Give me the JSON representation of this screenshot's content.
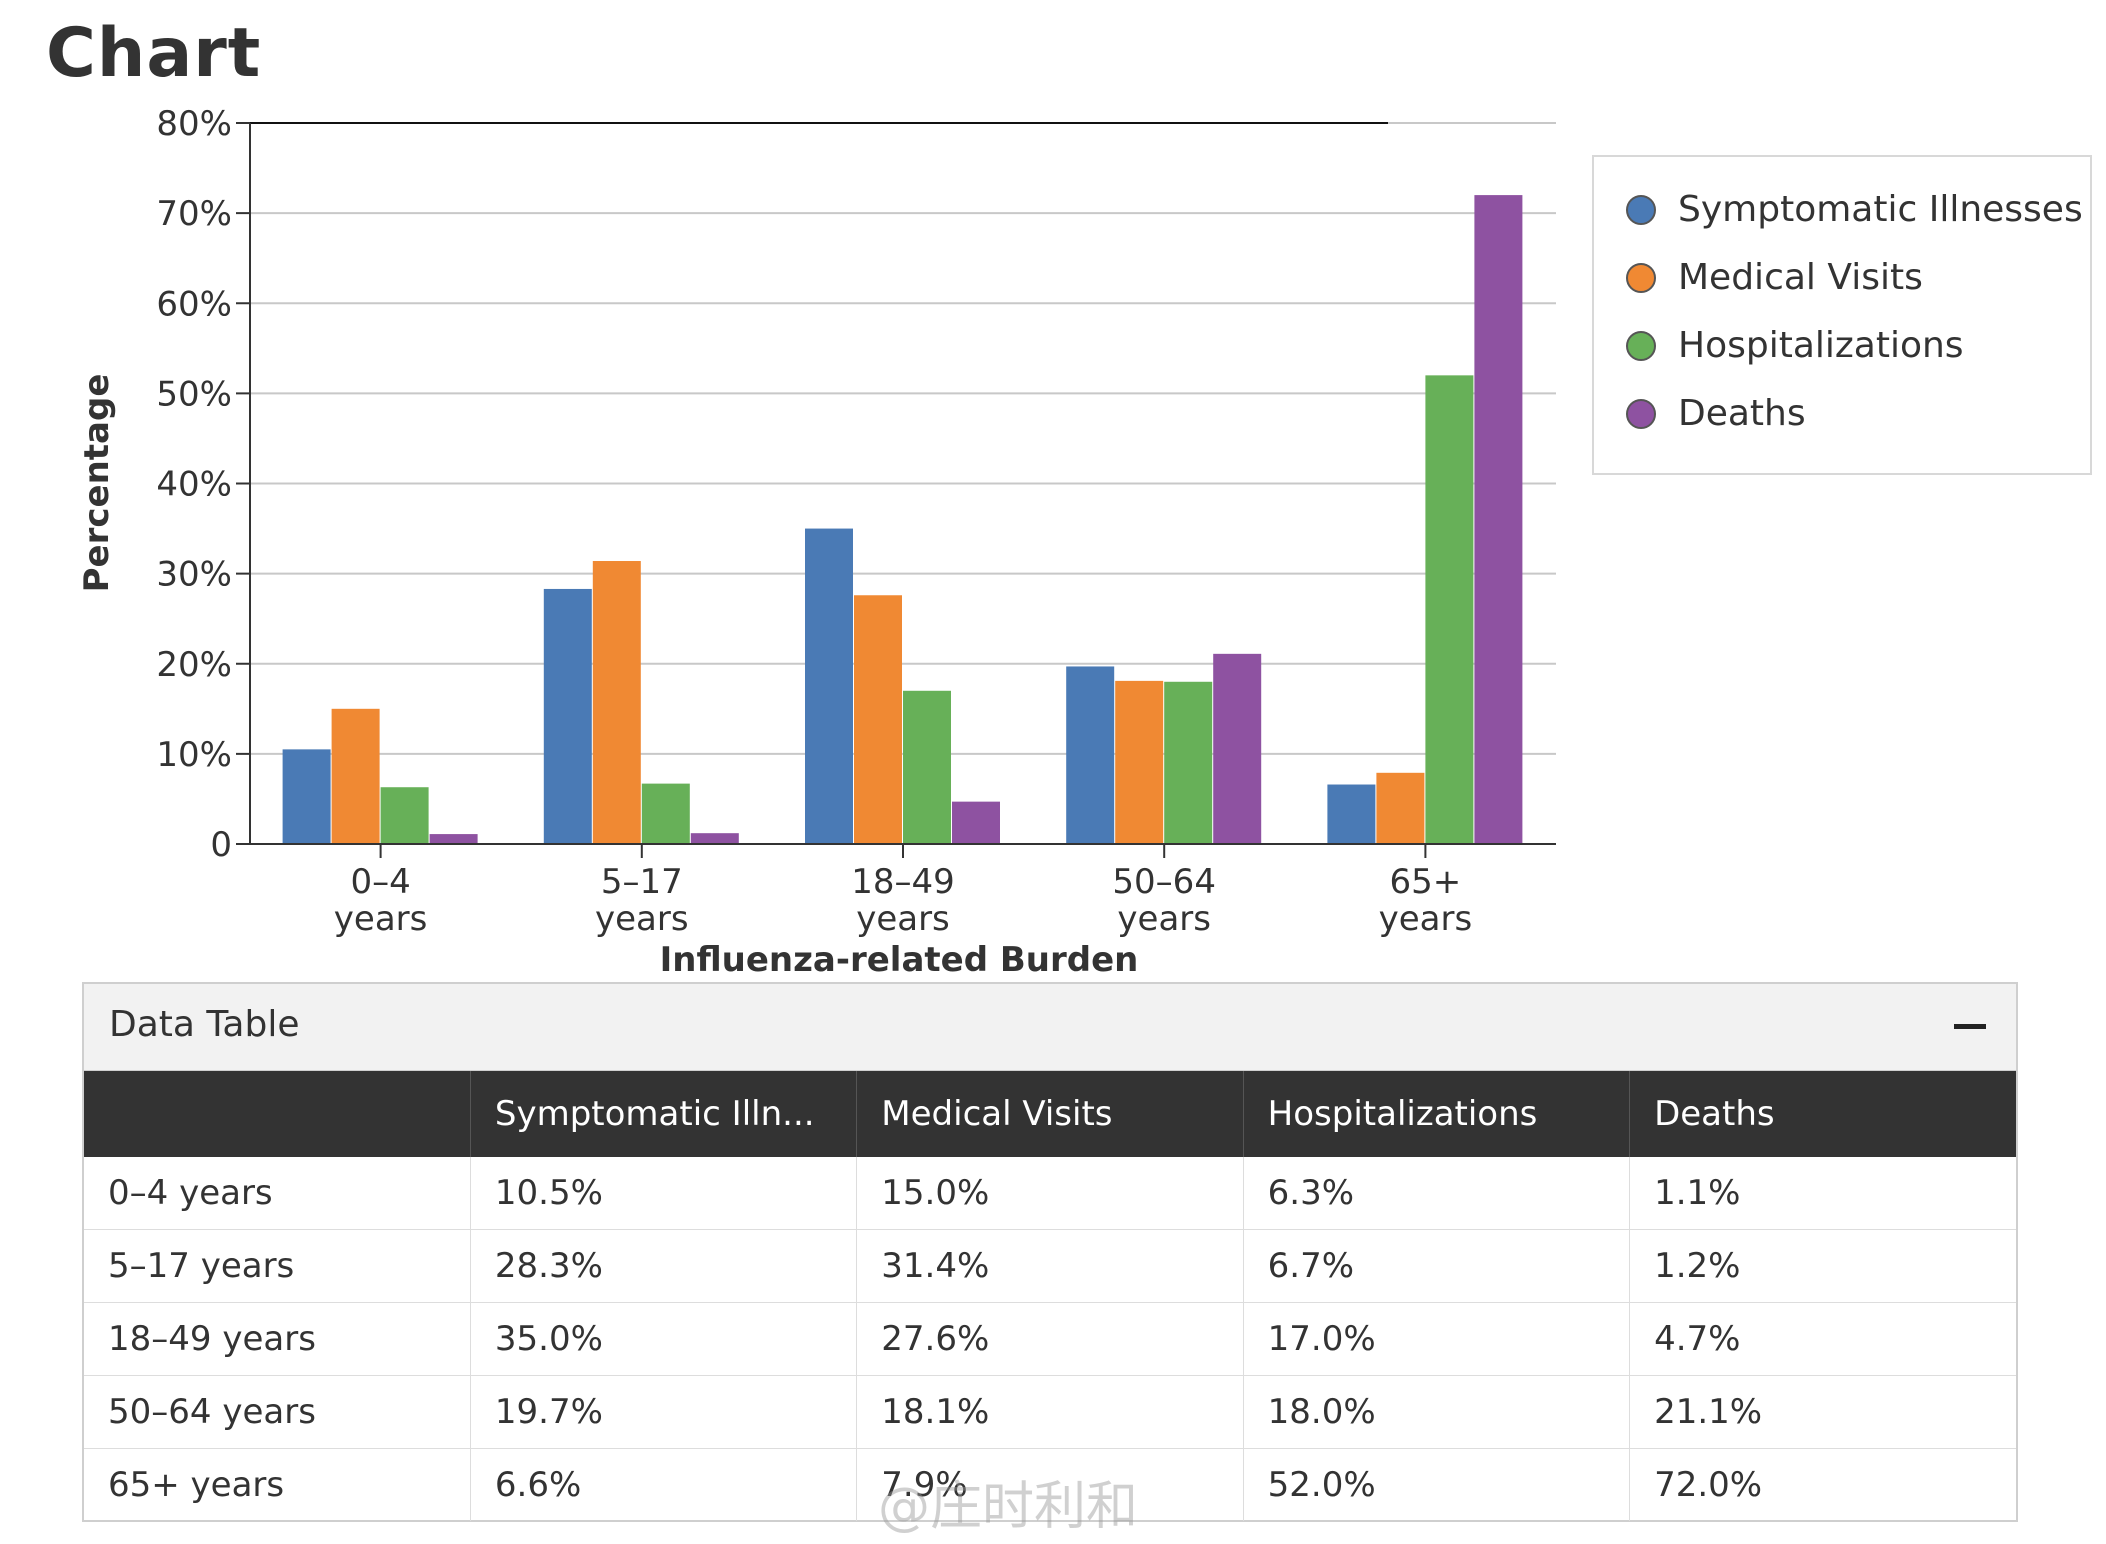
{
  "page": {
    "title": "Chart"
  },
  "colors": {
    "symptomatic": "#4a7ab5",
    "medical": "#f08933",
    "hospital": "#67b058",
    "deaths": "#8e52a1"
  },
  "chart_data": {
    "type": "bar",
    "title": "",
    "xlabel": "Influenza-related Burden",
    "ylabel": "Percentage",
    "ylim": [
      0,
      80
    ],
    "ytick_labels": [
      "0",
      "10%",
      "20%",
      "30%",
      "40%",
      "50%",
      "60%",
      "70%",
      "80%"
    ],
    "grid": true,
    "legend_position": "right",
    "categories": [
      {
        "line1": "0–4",
        "line2": "years"
      },
      {
        "line1": "5–17",
        "line2": "years"
      },
      {
        "line1": "18–49",
        "line2": "years"
      },
      {
        "line1": "50–64",
        "line2": "years"
      },
      {
        "line1": "65+",
        "line2": "years"
      }
    ],
    "series": [
      {
        "name": "Symptomatic Illnesses",
        "color": "#4a7ab5",
        "values": [
          10.5,
          28.3,
          35.0,
          19.7,
          6.6
        ]
      },
      {
        "name": "Medical Visits",
        "color": "#f08933",
        "values": [
          15.0,
          31.4,
          27.6,
          18.1,
          7.9
        ]
      },
      {
        "name": "Hospitalizations",
        "color": "#67b058",
        "values": [
          6.3,
          6.7,
          17.0,
          18.0,
          52.0
        ]
      },
      {
        "name": "Deaths",
        "color": "#8e52a1",
        "values": [
          1.1,
          1.2,
          4.7,
          21.1,
          72.0
        ]
      }
    ]
  },
  "legend": {
    "items": [
      "Symptomatic Illnesses",
      "Medical Visits",
      "Hospitalizations",
      "Deaths"
    ]
  },
  "data_table": {
    "title": "Data Table",
    "headers": [
      "",
      "Symptomatic Illn...",
      "Medical Visits",
      "Hospitalizations",
      "Deaths"
    ],
    "rows": [
      [
        "0–4 years",
        "10.5%",
        "15.0%",
        "6.3%",
        "1.1%"
      ],
      [
        "5–17 years",
        "28.3%",
        "31.4%",
        "6.7%",
        "1.2%"
      ],
      [
        "18–49 years",
        "35.0%",
        "27.6%",
        "17.0%",
        "4.7%"
      ],
      [
        "50–64 years",
        "19.7%",
        "18.1%",
        "18.0%",
        "21.1%"
      ],
      [
        "65+ years",
        "6.6%",
        "7.9%",
        "52.0%",
        "72.0%"
      ]
    ]
  },
  "watermark": "@庄时利和"
}
